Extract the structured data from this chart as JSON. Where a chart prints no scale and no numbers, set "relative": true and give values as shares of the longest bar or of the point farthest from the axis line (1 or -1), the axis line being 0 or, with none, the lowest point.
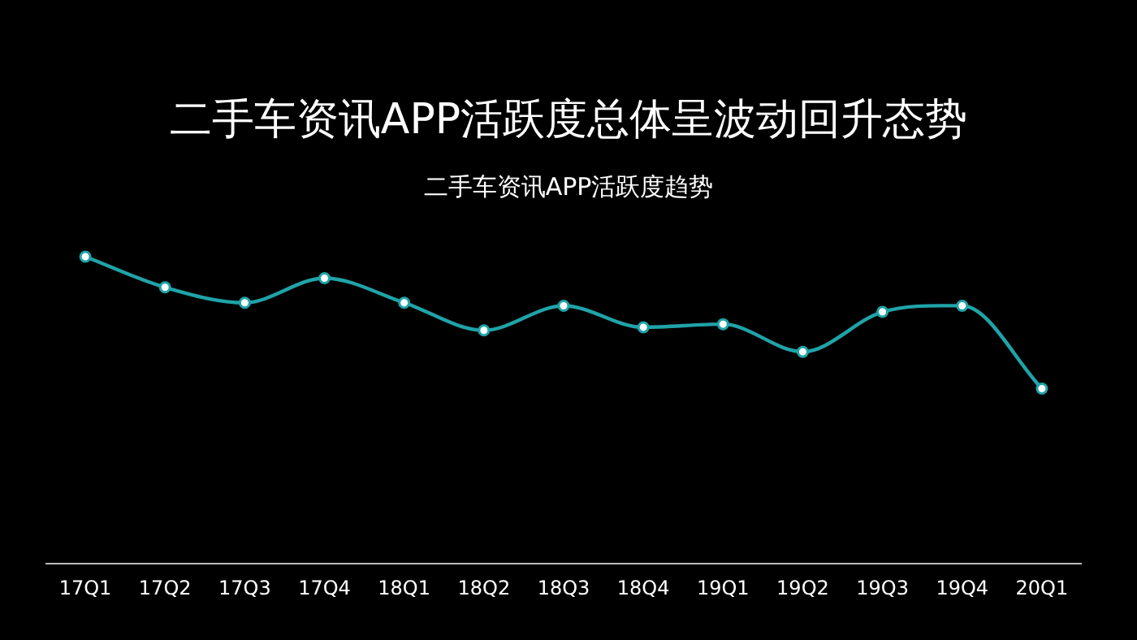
{
  "chart_data": {
    "type": "line",
    "title": "二手车资讯APP活跃度总体呈波动回升态势",
    "subtitle": "二手车资讯APP活跃度趋势",
    "relative": true,
    "categories": [
      "17Q1",
      "17Q2",
      "17Q3",
      "17Q4",
      "18Q1",
      "18Q2",
      "18Q3",
      "18Q4",
      "19Q1",
      "19Q2",
      "19Q3",
      "19Q4",
      "20Q1"
    ],
    "series": [
      {
        "color": "#1fa3a8",
        "values": [
          1,
          0.9,
          0.85,
          0.93,
          0.85,
          0.76,
          0.84,
          0.77,
          0.78,
          0.69,
          0.82,
          0.84,
          0.57
        ]
      }
    ],
    "marker": "circle"
  }
}
